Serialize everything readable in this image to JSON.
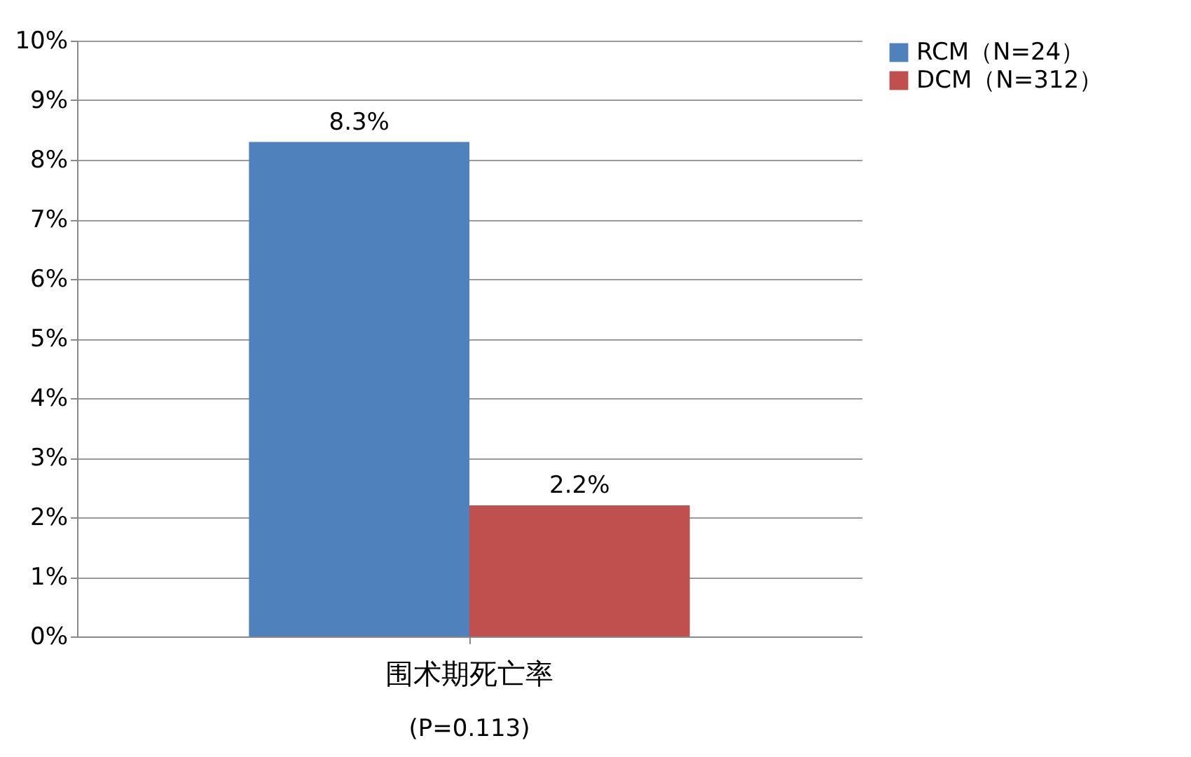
{
  "chart_data": {
    "type": "bar",
    "categories": [
      "围术期死亡率"
    ],
    "series": [
      {
        "name": "RCM（N=24）",
        "color": "#4f81bd",
        "values": [
          8.3
        ],
        "value_labels": [
          "8.3%"
        ]
      },
      {
        "name": "DCM（N=312）",
        "color": "#c0504d",
        "values": [
          2.2
        ],
        "value_labels": [
          "2.2%"
        ]
      }
    ],
    "ylim": [
      0,
      10
    ],
    "yticks": [
      {
        "value": 0,
        "label": "0%"
      },
      {
        "value": 1,
        "label": "1%"
      },
      {
        "value": 2,
        "label": "2%"
      },
      {
        "value": 3,
        "label": "3%"
      },
      {
        "value": 4,
        "label": "4%"
      },
      {
        "value": 5,
        "label": "5%"
      },
      {
        "value": 6,
        "label": "6%"
      },
      {
        "value": 7,
        "label": "7%"
      },
      {
        "value": 8,
        "label": "8%"
      },
      {
        "value": 9,
        "label": "9%"
      },
      {
        "value": 10,
        "label": "10%"
      }
    ],
    "grid": "y",
    "legend": "right",
    "annotations": [
      "(P=0.113)"
    ]
  }
}
